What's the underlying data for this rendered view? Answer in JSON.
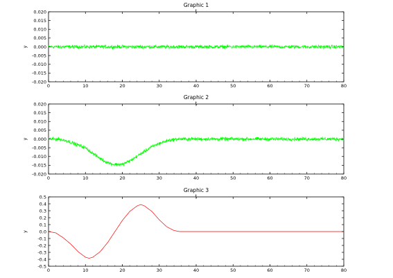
{
  "colors": {
    "noise_series": "#00ff00",
    "curve_series": "#ff0000",
    "axes": "#000000",
    "background": "#ffffff"
  },
  "chart_data": [
    {
      "type": "line",
      "title": "Graphic 1",
      "xlabel": "t",
      "ylabel": "y",
      "xlim": [
        0,
        80
      ],
      "ylim": [
        -0.02,
        0.02
      ],
      "xticks": [
        "0",
        "10",
        "20",
        "30",
        "40",
        "50",
        "60",
        "70",
        "80"
      ],
      "yticks": [
        "0.020",
        "0.015",
        "0.010",
        "0.005",
        "0.000",
        "-0.005",
        "-0.010",
        "-0.015",
        "-0.020"
      ],
      "grid": false,
      "series": [
        {
          "color": "#00ff00",
          "style": "noisy",
          "noise_amplitude": 0.0015,
          "x": [
            0,
            10,
            20,
            30,
            40,
            50,
            60,
            70,
            80
          ],
          "mean": [
            0.0,
            0.0,
            0.0,
            0.0,
            0.0,
            0.0,
            0.0,
            0.0,
            0.0
          ]
        }
      ]
    },
    {
      "type": "line",
      "title": "Graphic 2",
      "xlabel": "t",
      "ylabel": "y",
      "xlim": [
        0,
        80
      ],
      "ylim": [
        -0.02,
        0.02
      ],
      "xticks": [
        "0",
        "10",
        "20",
        "30",
        "40",
        "50",
        "60",
        "70",
        "80"
      ],
      "yticks": [
        "0.020",
        "0.015",
        "0.010",
        "0.005",
        "0.000",
        "-0.005",
        "-0.010",
        "-0.015",
        "-0.020"
      ],
      "grid": false,
      "series": [
        {
          "color": "#00ff00",
          "style": "noisy",
          "noise_amplitude": 0.0015,
          "x": [
            0,
            2.5,
            5,
            7.5,
            10,
            12.5,
            15,
            17.5,
            20,
            22.5,
            25,
            27.5,
            30,
            32.5,
            35,
            40,
            50,
            60,
            70,
            80
          ],
          "mean": [
            0.0,
            0.0,
            -0.001,
            -0.003,
            -0.005,
            -0.009,
            -0.0125,
            -0.0145,
            -0.0145,
            -0.012,
            -0.0085,
            -0.005,
            -0.0025,
            -0.0008,
            0.0,
            0.0,
            0.0,
            0.0,
            0.0,
            0.0
          ]
        }
      ]
    },
    {
      "type": "line",
      "title": "Graphic 3",
      "xlabel": "t",
      "ylabel": "y",
      "xlim": [
        0,
        80
      ],
      "ylim": [
        -0.5,
        0.5
      ],
      "xticks": [
        "0",
        "10",
        "20",
        "30",
        "40",
        "50",
        "60",
        "70",
        "80"
      ],
      "yticks": [
        "0.5",
        "0.4",
        "0.3",
        "0.2",
        "0.1",
        "0.0",
        "-0.1",
        "-0.2",
        "-0.3",
        "-0.4",
        "-0.5"
      ],
      "grid": false,
      "series": [
        {
          "color": "#ff0000",
          "style": "smooth",
          "x": [
            0,
            2,
            4,
            6,
            8,
            10,
            11,
            12,
            14,
            16,
            18,
            20,
            22,
            24,
            25,
            26,
            28,
            30,
            32,
            34,
            35.5,
            40,
            50,
            60,
            70,
            80
          ],
          "y": [
            0.0,
            -0.02,
            -0.09,
            -0.18,
            -0.29,
            -0.37,
            -0.385,
            -0.37,
            -0.29,
            -0.16,
            0.0,
            0.16,
            0.29,
            0.37,
            0.39,
            0.37,
            0.29,
            0.17,
            0.07,
            0.015,
            0.0,
            0.0,
            0.0,
            0.0,
            0.0,
            0.0
          ]
        }
      ]
    }
  ]
}
